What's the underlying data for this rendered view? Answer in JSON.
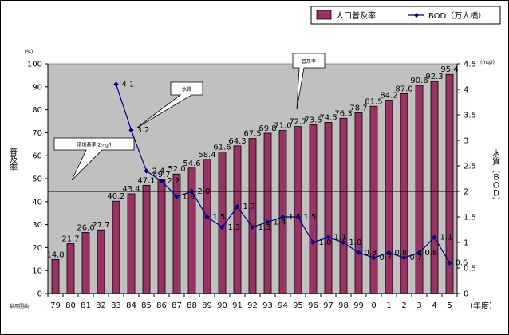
{
  "chart_data": {
    "type": "bar",
    "categories": [
      "79",
      "80",
      "81",
      "82",
      "83",
      "84",
      "85",
      "86",
      "87",
      "88",
      "89",
      "90",
      "91",
      "92",
      "93",
      "94",
      "95",
      "96",
      "97",
      "98",
      "99",
      "0",
      "1",
      "2",
      "3",
      "4",
      "5"
    ],
    "series": [
      {
        "name": "人口普及率",
        "type": "bar",
        "axis": "left",
        "color": "#993366",
        "values": [
          14.8,
          21.7,
          26.6,
          27.7,
          40.2,
          43.4,
          47.1,
          49.7,
          52.0,
          54.6,
          58.4,
          61.6,
          64.3,
          67.5,
          69.8,
          71.0,
          72.7,
          73.5,
          74.5,
          76.3,
          78.7,
          81.5,
          84.2,
          87.0,
          90.6,
          92.3,
          95.4
        ],
        "labels": [
          "14.8",
          "21.7",
          "26.6",
          "27.7",
          "40.2",
          "43.4",
          "47.1",
          "49.7",
          "52.0",
          "54.6",
          "58.4",
          "61.6",
          "64.3",
          "67.5",
          "69.8",
          "71.0",
          "72.7",
          "73.5",
          "74.5",
          "76.3",
          "78.7",
          "81.5",
          "84.2",
          "87.0",
          "90.6",
          "92.3",
          "95.4"
        ]
      },
      {
        "name": "BOD（万人橋）",
        "type": "line",
        "axis": "right",
        "color": "#000080",
        "values": [
          null,
          null,
          null,
          null,
          4.1,
          3.2,
          2.4,
          2.2,
          1.9,
          2.0,
          1.5,
          1.3,
          1.7,
          1.3,
          1.4,
          1.5,
          1.5,
          1.0,
          1.1,
          1.0,
          0.8,
          0.7,
          0.8,
          0.7,
          0.8,
          1.1,
          0.6
        ],
        "labels": [
          null,
          null,
          null,
          null,
          "4.1",
          "3.2",
          "2.4",
          "2.2",
          "1.9",
          "2.0",
          "1.5",
          "1.3",
          "1.7",
          "1.3",
          "1.4",
          "1.5",
          "1.5",
          "1.0",
          "1.1",
          "1.0",
          "0.8",
          "0.7",
          "0.8",
          "0.7",
          "0.8",
          "1.1",
          "0.6"
        ]
      }
    ],
    "yleft": {
      "ylim": [
        0,
        100
      ],
      "ticks": [
        "0",
        "10",
        "20",
        "30",
        "40",
        "50",
        "60",
        "70",
        "80",
        "90",
        "100"
      ],
      "label": "普及率",
      "unit": "(%)"
    },
    "yright": {
      "ylim": [
        0,
        4.5
      ],
      "ticks": [
        "0",
        "0.5",
        "1",
        "1.5",
        "2",
        "2.5",
        "3",
        "3.5",
        "4",
        "4.5"
      ],
      "label": "水質（ＢＯＤ）",
      "unit": "(mg/l)"
    },
    "xlabel": "（年度）",
    "corner_label": "供用開始",
    "reference_line": {
      "axis": "right",
      "value": 2.0,
      "label": "環境基準 2mg/l"
    },
    "callouts": {
      "water": "水質",
      "coverage": "普及率"
    },
    "legend": {
      "position": "top-right"
    },
    "grid": false
  }
}
